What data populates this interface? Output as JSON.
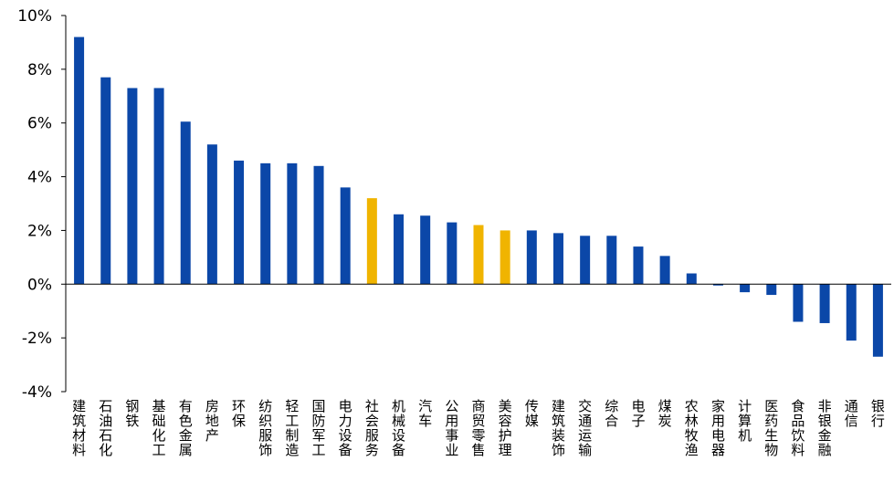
{
  "chart_data": {
    "type": "bar",
    "title": "",
    "xlabel": "",
    "ylabel": "",
    "ylim": [
      -4,
      10
    ],
    "yticks": [
      -4,
      -2,
      0,
      2,
      4,
      6,
      8,
      10
    ],
    "ytick_labels": [
      "-4%",
      "-2%",
      "0%",
      "2%",
      "4%",
      "6%",
      "8%",
      "10%"
    ],
    "grid": false,
    "legend": "none",
    "colors": {
      "default": "#0b47a8",
      "highlight": "#f0b400"
    },
    "categories": [
      "建筑材料",
      "石油石化",
      "钢铁",
      "基础化工",
      "有色金属",
      "房地产",
      "环保",
      "纺织服饰",
      "轻工制造",
      "国防军工",
      "电力设备",
      "社会服务",
      "机械设备",
      "汽车",
      "公用事业",
      "商贸零售",
      "美容护理",
      "传媒",
      "建筑装饰",
      "交通运输",
      "综合",
      "电子",
      "煤炭",
      "农林牧渔",
      "家用电器",
      "计算机",
      "医药生物",
      "食品饮料",
      "非银金融",
      "通信",
      "银行"
    ],
    "values": [
      9.2,
      7.7,
      7.3,
      7.3,
      6.05,
      5.2,
      4.6,
      4.5,
      4.5,
      4.4,
      3.6,
      3.2,
      2.6,
      2.55,
      2.3,
      2.2,
      2.0,
      2.0,
      1.9,
      1.8,
      1.8,
      1.4,
      1.05,
      0.4,
      -0.05,
      -0.3,
      -0.4,
      -1.4,
      -1.45,
      -2.1,
      -2.7
    ],
    "highlight_indices": [
      11,
      15,
      16
    ]
  }
}
